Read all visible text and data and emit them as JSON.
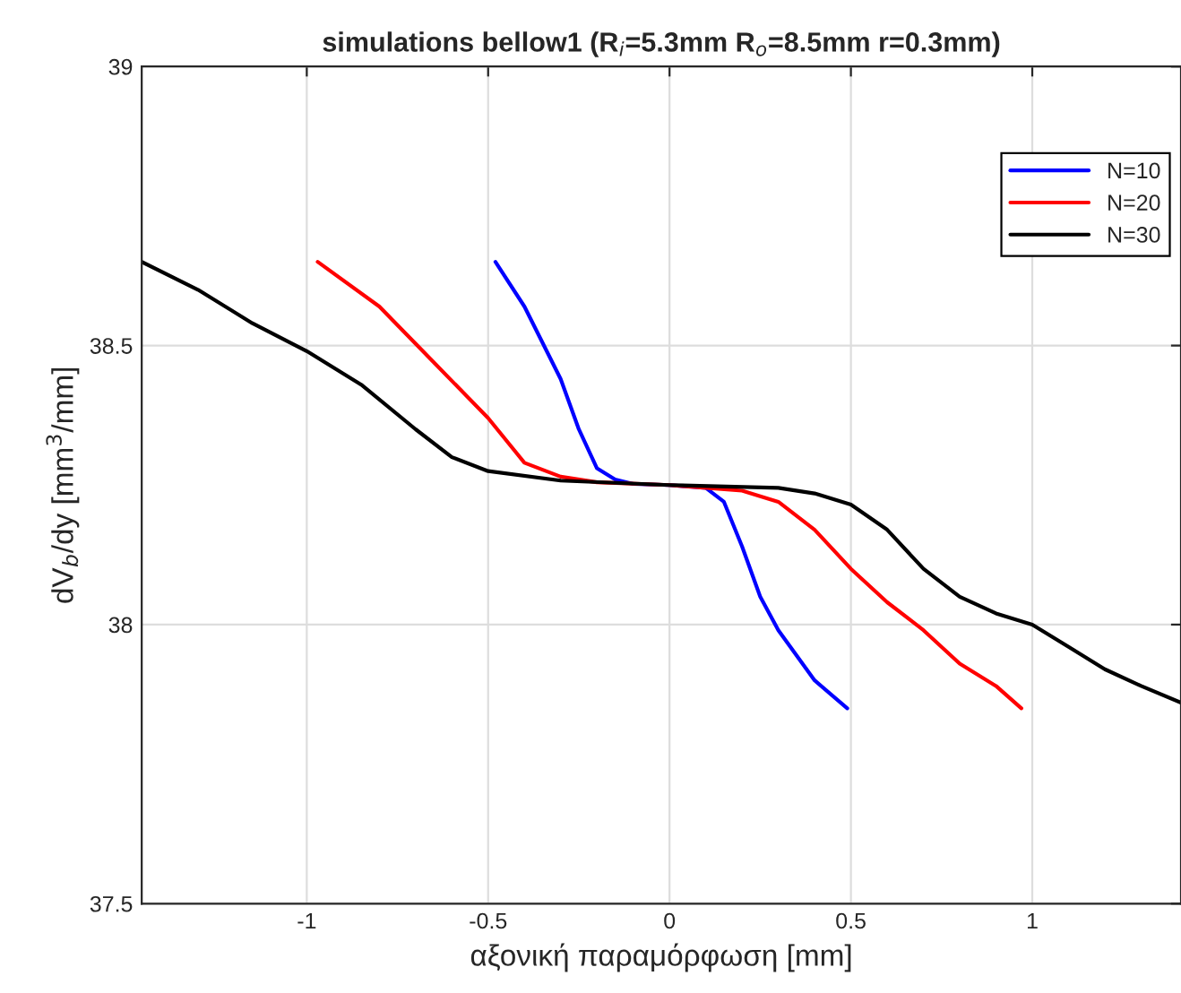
{
  "chart_data": {
    "type": "line",
    "title": "simulations bellow1 (R$_{i}$=5.3mm R$_{o}$=8.5mm r=0.3mm)",
    "xlabel": "αξονική παραμόρφωση [mm]",
    "ylabel": "dV$_{b}$/dy [mm$^{3}$/mm]",
    "xlim": [
      -1.455,
      1.41
    ],
    "ylim": [
      37.5,
      39
    ],
    "xticks": [
      -1,
      -0.5,
      0,
      0.5,
      1
    ],
    "yticks": [
      37.5,
      38,
      38.5,
      39
    ],
    "grid": true,
    "legend": "top right",
    "series": [
      {
        "name": "N=10",
        "color": "#0000ff",
        "x": [
          -0.48,
          -0.4,
          -0.3,
          -0.25,
          -0.2,
          -0.15,
          -0.1,
          0,
          0.1,
          0.15,
          0.2,
          0.25,
          0.3,
          0.4,
          0.49
        ],
        "values": [
          38.65,
          38.57,
          38.44,
          38.35,
          38.28,
          38.26,
          38.252,
          38.25,
          38.245,
          38.22,
          38.14,
          38.05,
          37.99,
          37.9,
          37.85
        ]
      },
      {
        "name": "N=20",
        "color": "#ff0000",
        "x": [
          -0.97,
          -0.8,
          -0.65,
          -0.5,
          -0.4,
          -0.3,
          -0.2,
          0,
          0.2,
          0.3,
          0.4,
          0.5,
          0.6,
          0.7,
          0.8,
          0.9,
          0.97
        ],
        "values": [
          38.65,
          38.57,
          38.47,
          38.37,
          38.29,
          38.265,
          38.255,
          38.25,
          38.24,
          38.22,
          38.17,
          38.1,
          38.04,
          37.99,
          37.93,
          37.89,
          37.85
        ]
      },
      {
        "name": "N=30",
        "color": "#000000",
        "x": [
          -1.455,
          -1.3,
          -1.15,
          -1,
          -0.85,
          -0.7,
          -0.6,
          -0.5,
          -0.3,
          0,
          0.3,
          0.4,
          0.5,
          0.6,
          0.7,
          0.8,
          0.9,
          1,
          1.1,
          1.2,
          1.3,
          1.41
        ],
        "values": [
          38.65,
          38.6,
          38.54,
          38.49,
          38.43,
          38.35,
          38.3,
          38.275,
          38.258,
          38.25,
          38.245,
          38.235,
          38.215,
          38.17,
          38.1,
          38.05,
          38.02,
          38.0,
          37.96,
          37.92,
          37.89,
          37.86
        ]
      }
    ]
  }
}
